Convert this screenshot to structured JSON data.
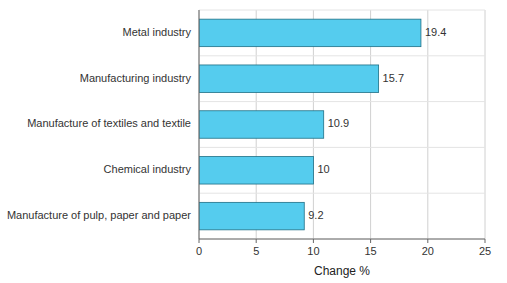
{
  "chart_data": {
    "type": "bar",
    "orientation": "horizontal",
    "categories": [
      "Manufacture of pulp, paper and paper",
      "Chemical industry",
      "Manufacture of textiles and textile",
      "Manufacturing industry",
      "Metal industry"
    ],
    "values": [
      9.2,
      10,
      10.9,
      15.7,
      19.4
    ],
    "color": "#55ccee",
    "x_label": "Change %",
    "xlim": [
      0,
      25
    ],
    "xticks": [
      0,
      5,
      10,
      15,
      20,
      25
    ],
    "grid": true,
    "data_labels": true
  }
}
